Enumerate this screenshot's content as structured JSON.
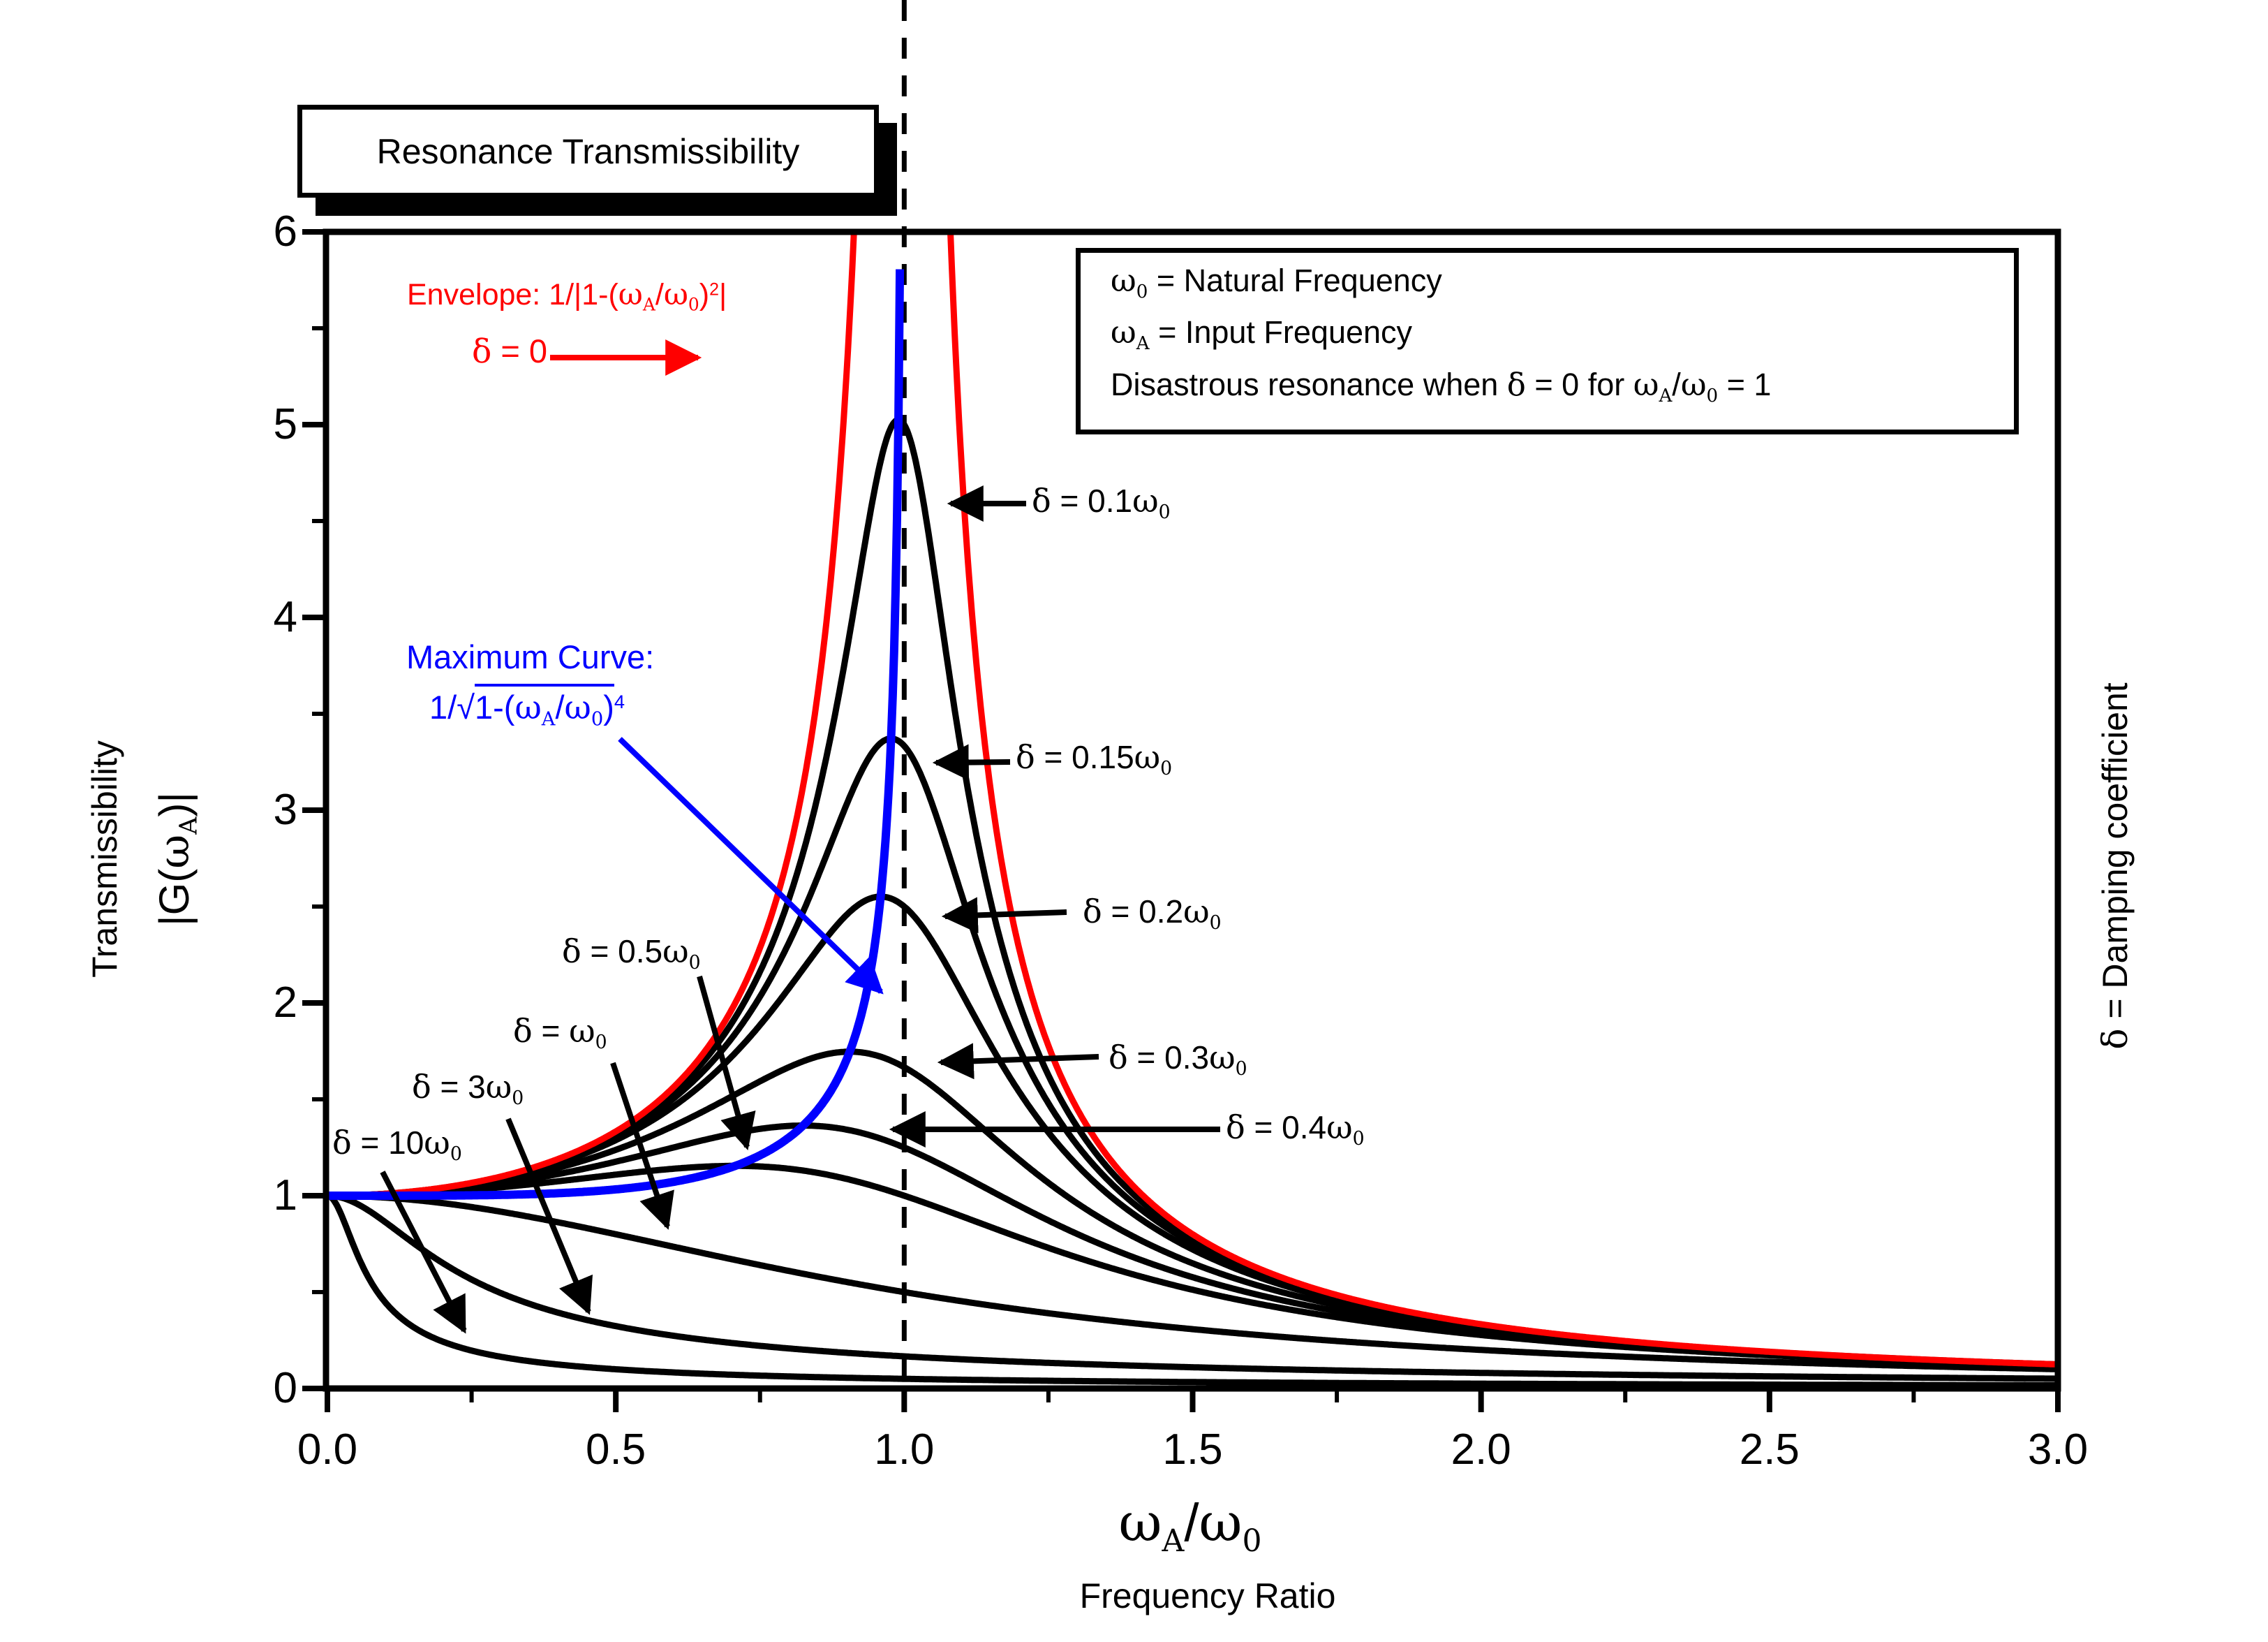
{
  "chart_data": {
    "type": "line",
    "title": "Resonance Transmissibility",
    "xlabel": "ωA/ω0 (Frequency Ratio)",
    "ylabel": "Transmissibility |G(ωA)|",
    "right_axis_label": "δ = Damping coefficient",
    "xlim": [
      0.0,
      3.0
    ],
    "ylim": [
      0,
      6
    ],
    "x_ticks": [
      0.0,
      0.5,
      1.0,
      1.5,
      2.0,
      2.5,
      3.0
    ],
    "y_ticks": [
      0,
      1,
      2,
      3,
      4,
      5,
      6
    ],
    "grid": false,
    "legend_position": "top-right",
    "dashed_vertical_line_x": 1.0,
    "formula": "|G(wA)| = 1 / sqrt((1-r^2)^2 + (2*zeta*r)^2), r = wA/w0, zeta = delta/w0",
    "envelope_formula": "1/|1-(wA/w0)^2| (delta = 0)",
    "maximum_curve_formula": "1/sqrt(1-(wA/w0)^4)",
    "sample_x": [
      0,
      0.25,
      0.5,
      0.75,
      1.0,
      1.25,
      1.5,
      1.75,
      2.0,
      2.25,
      2.5,
      2.75,
      3.0
    ],
    "series": [
      {
        "name": "δ = 0.1ω0",
        "zeta": 0.1,
        "color": "#000000",
        "values": [
          1,
          1.065,
          1.322,
          2.162,
          5.0,
          1.624,
          0.778,
          0.478,
          0.33,
          0.245,
          0.19,
          0.152,
          0.125
        ]
      },
      {
        "name": "δ = 0.15ω0",
        "zeta": 0.15,
        "color": "#000000",
        "values": [
          1,
          1.063,
          1.307,
          2.033,
          3.333,
          1.479,
          0.753,
          0.47,
          0.327,
          0.243,
          0.189,
          0.151,
          0.124
        ]
      },
      {
        "name": "δ = 0.2ω0",
        "zeta": 0.2,
        "color": "#000000",
        "values": [
          1,
          1.061,
          1.288,
          1.885,
          2.5,
          1.329,
          0.721,
          0.459,
          0.322,
          0.24,
          0.187,
          0.15,
          0.124
        ]
      },
      {
        "name": "δ = 0.3ω0",
        "zeta": 0.3,
        "color": "#000000",
        "values": [
          1,
          1.053,
          1.238,
          1.593,
          1.667,
          1.067,
          0.649,
          0.432,
          0.31,
          0.234,
          0.183,
          0.148,
          0.122
        ]
      },
      {
        "name": "δ = 0.4ω0",
        "zeta": 0.4,
        "color": "#000000",
        "values": [
          1,
          1.043,
          1.176,
          1.347,
          1.25,
          0.872,
          0.577,
          0.401,
          0.294,
          0.225,
          0.178,
          0.144,
          0.12
        ]
      },
      {
        "name": "δ = 0.5ω0",
        "zeta": 0.5,
        "color": "#000000",
        "values": [
          1,
          1.031,
          1.109,
          1.152,
          1.0,
          0.73,
          0.512,
          0.37,
          0.277,
          0.215,
          0.172,
          0.141,
          0.117
        ]
      },
      {
        "name": "δ = ω0",
        "zeta": 1.0,
        "color": "#000000",
        "values": [
          1,
          0.941,
          0.8,
          0.64,
          0.5,
          0.39,
          0.308,
          0.246,
          0.2,
          0.165,
          0.138,
          0.117,
          0.1
        ]
      },
      {
        "name": "δ = 3ω0",
        "zeta": 3.0,
        "color": "#000000",
        "values": [
          1,
          0.565,
          0.323,
          0.221,
          0.167,
          0.133,
          0.11,
          0.093,
          0.081,
          0.071,
          0.063,
          0.056,
          0.051
        ]
      },
      {
        "name": "δ = 10ω0",
        "zeta": 10.0,
        "color": "#000000",
        "values": [
          1,
          0.197,
          0.1,
          0.067,
          0.05,
          0.04,
          0.033,
          0.029,
          0.025,
          0.022,
          0.02,
          0.018,
          0.017
        ]
      },
      {
        "name": "Envelope δ = 0",
        "special": "envelope",
        "color": "#FF0000",
        "values": [
          1,
          1.067,
          1.333,
          2.286,
          null,
          1.778,
          0.8,
          0.485,
          0.333,
          0.246,
          0.19,
          0.152,
          0.125
        ]
      },
      {
        "name": "Maximum Curve",
        "special": "maximum",
        "color": "#0000FF",
        "values": [
          1,
          1.002,
          1.033,
          1.213,
          null,
          null,
          null,
          null,
          null,
          null,
          null,
          null,
          null
        ]
      }
    ]
  },
  "ui": {
    "title": "Resonance Transmissibility",
    "colors": {
      "envelope": "#FF0000",
      "maximum": "#0000FF",
      "curves": "#000000",
      "background": "#FFFFFF"
    },
    "legend": {
      "line1": [
        [
          "ω",
          "gk"
        ],
        [
          "0",
          "gk sub"
        ],
        [
          " = Natural Frequency",
          ""
        ]
      ],
      "line2": [
        [
          "ω",
          "gk"
        ],
        [
          "A",
          "gk sub"
        ],
        [
          " = Input Frequency",
          ""
        ]
      ],
      "line3": [
        [
          "Disastrous  resonance when ",
          ""
        ],
        [
          "δ",
          "gk"
        ],
        [
          " = 0 for  ",
          ""
        ],
        [
          "ω",
          "gk"
        ],
        [
          "A",
          "gk sub"
        ],
        [
          "/",
          ""
        ],
        [
          "ω",
          "gk"
        ],
        [
          "0",
          "gk sub"
        ],
        [
          " = 1",
          ""
        ]
      ]
    },
    "annotations": {
      "envelope_line1": [
        [
          "Envelope: 1/|1-(",
          ""
        ],
        [
          "ω",
          "gk"
        ],
        [
          "A",
          "gk sub"
        ],
        [
          "/",
          ""
        ],
        [
          "ω",
          "gk"
        ],
        [
          "0",
          "gk sub"
        ],
        [
          ")",
          ""
        ],
        [
          "2",
          "sup"
        ],
        [
          "|",
          ""
        ]
      ],
      "envelope_line2": [
        [
          "δ",
          "gk"
        ],
        [
          " = 0",
          ""
        ]
      ],
      "maximum_line1": [
        [
          "Maximum Curve:",
          ""
        ]
      ],
      "maximum_line2": [
        [
          "1/√",
          ""
        ],
        [
          [
            [
              "1-(",
              ""
            ],
            [
              "ω",
              "gk"
            ],
            [
              "A",
              "gk sub"
            ],
            [
              "/",
              ""
            ],
            [
              "ω",
              "gk"
            ],
            [
              "0",
              "gk sub"
            ],
            [
              ")",
              ""
            ]
          ],
          "ovl"
        ],
        [
          "4",
          "sup"
        ]
      ],
      "delta_01": [
        [
          "δ",
          "gk"
        ],
        [
          " = 0.1",
          ""
        ],
        [
          "ω",
          "gk"
        ],
        [
          "0",
          "gk sub"
        ]
      ],
      "delta_015": [
        [
          "δ",
          "gk"
        ],
        [
          " = 0.15",
          ""
        ],
        [
          "ω",
          "gk"
        ],
        [
          "0",
          "gk sub"
        ]
      ],
      "delta_02": [
        [
          "δ",
          "gk"
        ],
        [
          " = 0.2",
          ""
        ],
        [
          "ω",
          "gk"
        ],
        [
          "0",
          "gk sub"
        ]
      ],
      "delta_03": [
        [
          "δ",
          "gk"
        ],
        [
          " = 0.3",
          ""
        ],
        [
          "ω",
          "gk"
        ],
        [
          "0",
          "gk sub"
        ]
      ],
      "delta_04": [
        [
          "δ",
          "gk"
        ],
        [
          " = 0.4",
          ""
        ],
        [
          "ω",
          "gk"
        ],
        [
          "0",
          "gk sub"
        ]
      ],
      "delta_05": [
        [
          "δ",
          "gk"
        ],
        [
          " = 0.5",
          ""
        ],
        [
          "ω",
          "gk"
        ],
        [
          "0",
          "gk sub"
        ]
      ],
      "delta_1": [
        [
          "δ",
          "gk"
        ],
        [
          " = ",
          ""
        ],
        [
          "ω",
          "gk"
        ],
        [
          "0",
          "gk sub"
        ]
      ],
      "delta_3": [
        [
          "δ",
          "gk"
        ],
        [
          " = 3",
          ""
        ],
        [
          "ω",
          "gk"
        ],
        [
          "0",
          "gk sub"
        ]
      ],
      "delta_10": [
        [
          "δ",
          "gk"
        ],
        [
          " = 10",
          ""
        ],
        [
          "ω",
          "gk"
        ],
        [
          "0",
          "gk sub"
        ]
      ]
    },
    "axes": {
      "x": {
        "tick_labels": [
          "0.0",
          "0.5",
          "1.0",
          "1.5",
          "2.0",
          "2.5",
          "3.0"
        ],
        "label_rich": [
          [
            "ω",
            "gk"
          ],
          [
            "A",
            "gk sub"
          ],
          [
            "/",
            ""
          ],
          [
            "ω",
            "gk"
          ],
          [
            "0",
            "gk sub"
          ]
        ],
        "sublabel": "Frequency Ratio"
      },
      "y": {
        "tick_labels": [
          "0",
          "1",
          "2",
          "3",
          "4",
          "5",
          "6"
        ],
        "label": "Transmissibility",
        "label2_rich": [
          [
            "|G(",
            ""
          ],
          [
            "ω",
            "gk"
          ],
          [
            "A",
            "gk sub"
          ],
          [
            ")|",
            ""
          ]
        ]
      },
      "right_label_rich": [
        [
          "δ",
          "gk"
        ],
        [
          " = Damping coefficient",
          ""
        ]
      ]
    }
  }
}
